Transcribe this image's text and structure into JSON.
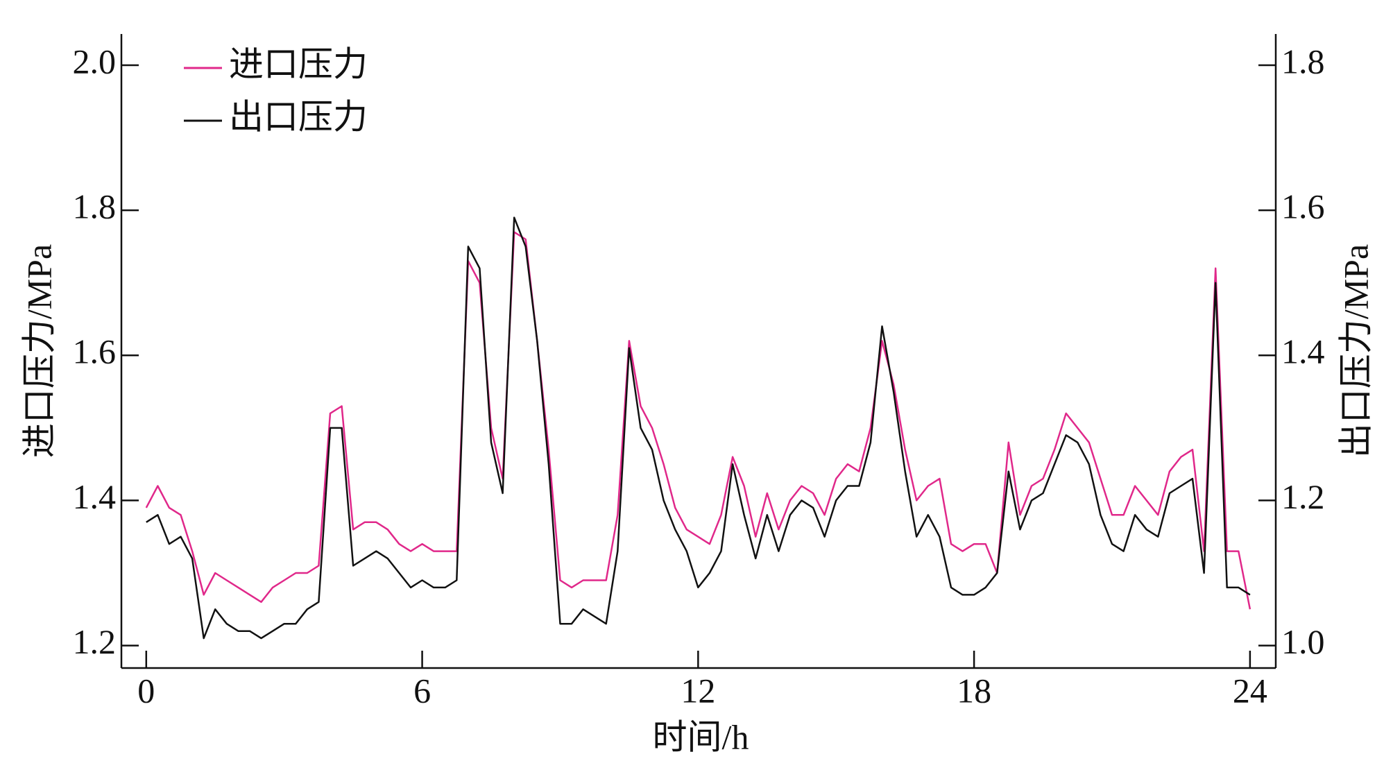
{
  "chart_data": {
    "type": "line",
    "xlabel": "时间/h",
    "ylabel": "进口压力/MPa",
    "y2label": "出口压力/MPa",
    "x": [
      0,
      0.25,
      0.5,
      0.75,
      1,
      1.25,
      1.5,
      1.75,
      2,
      2.25,
      2.5,
      2.75,
      3,
      3.25,
      3.5,
      3.75,
      4,
      4.25,
      4.5,
      4.75,
      5,
      5.25,
      5.5,
      5.75,
      6,
      6.25,
      6.5,
      6.75,
      7,
      7.25,
      7.5,
      7.75,
      8,
      8.25,
      8.5,
      8.75,
      9,
      9.25,
      9.5,
      9.75,
      10,
      10.25,
      10.5,
      10.75,
      11,
      11.25,
      11.5,
      11.75,
      12,
      12.25,
      12.5,
      12.75,
      13,
      13.25,
      13.5,
      13.75,
      14,
      14.25,
      14.5,
      14.75,
      15,
      15.25,
      15.5,
      15.75,
      16,
      16.25,
      16.5,
      16.75,
      17,
      17.25,
      17.5,
      17.75,
      18,
      18.25,
      18.5,
      18.75,
      19,
      19.25,
      19.5,
      19.75,
      20,
      20.25,
      20.5,
      20.75,
      21,
      21.25,
      21.5,
      21.75,
      22,
      22.25,
      22.5,
      22.75,
      23,
      23.25,
      23.5,
      23.75,
      24
    ],
    "series": [
      {
        "name": "进口压力",
        "color": "#e0288a",
        "values": [
          1.39,
          1.42,
          1.39,
          1.38,
          1.33,
          1.27,
          1.3,
          1.29,
          1.28,
          1.27,
          1.26,
          1.28,
          1.29,
          1.3,
          1.3,
          1.31,
          1.52,
          1.53,
          1.36,
          1.37,
          1.37,
          1.36,
          1.34,
          1.33,
          1.34,
          1.33,
          1.33,
          1.33,
          1.73,
          1.7,
          1.5,
          1.43,
          1.77,
          1.76,
          1.62,
          1.47,
          1.29,
          1.28,
          1.29,
          1.29,
          1.29,
          1.38,
          1.62,
          1.53,
          1.5,
          1.45,
          1.39,
          1.36,
          1.35,
          1.34,
          1.38,
          1.46,
          1.42,
          1.35,
          1.41,
          1.36,
          1.4,
          1.42,
          1.41,
          1.38,
          1.43,
          1.45,
          1.44,
          1.5,
          1.62,
          1.56,
          1.47,
          1.4,
          1.42,
          1.43,
          1.34,
          1.33,
          1.34,
          1.34,
          1.3,
          1.48,
          1.38,
          1.42,
          1.43,
          1.47,
          1.52,
          1.5,
          1.48,
          1.43,
          1.38,
          1.38,
          1.42,
          1.4,
          1.38,
          1.44,
          1.46,
          1.47,
          1.33,
          1.72,
          1.33,
          1.33,
          1.25
        ]
      },
      {
        "name": "出口压力",
        "color": "#111111",
        "axis": "y2",
        "values": [
          1.17,
          1.18,
          1.14,
          1.15,
          1.12,
          1.01,
          1.05,
          1.03,
          1.02,
          1.02,
          1.01,
          1.02,
          1.03,
          1.03,
          1.05,
          1.06,
          1.3,
          1.3,
          1.11,
          1.12,
          1.13,
          1.12,
          1.1,
          1.08,
          1.09,
          1.08,
          1.08,
          1.09,
          1.55,
          1.52,
          1.28,
          1.21,
          1.59,
          1.55,
          1.42,
          1.25,
          1.03,
          1.03,
          1.05,
          1.04,
          1.03,
          1.13,
          1.41,
          1.3,
          1.27,
          1.2,
          1.16,
          1.13,
          1.08,
          1.1,
          1.13,
          1.25,
          1.18,
          1.12,
          1.18,
          1.13,
          1.18,
          1.2,
          1.19,
          1.15,
          1.2,
          1.22,
          1.22,
          1.28,
          1.44,
          1.35,
          1.24,
          1.15,
          1.18,
          1.15,
          1.08,
          1.07,
          1.07,
          1.08,
          1.1,
          1.24,
          1.16,
          1.2,
          1.21,
          1.25,
          1.29,
          1.28,
          1.25,
          1.18,
          1.14,
          1.13,
          1.18,
          1.16,
          1.15,
          1.21,
          1.22,
          1.23,
          1.1,
          1.5,
          1.08,
          1.08,
          1.07
        ]
      }
    ],
    "xlim": [
      -0.54,
      24.56
    ],
    "xticks": [
      0,
      6,
      12,
      18,
      24
    ],
    "ylim": [
      1.169,
      2.043
    ],
    "yticks": [
      {
        "value": 1.2,
        "label": "1.2"
      },
      {
        "value": 1.4,
        "label": "1.4"
      },
      {
        "value": 1.6,
        "label": "1.6"
      },
      {
        "value": 1.8,
        "label": "1.8"
      },
      {
        "value": 2.0,
        "label": "2.0"
      }
    ],
    "y2lim": [
      0.969,
      1.843
    ],
    "y2ticks": [
      {
        "value": 1.0,
        "label": "1.0"
      },
      {
        "value": 1.2,
        "label": "1.2"
      },
      {
        "value": 1.4,
        "label": "1.4"
      },
      {
        "value": 1.6,
        "label": "1.6"
      },
      {
        "value": 1.8,
        "label": "1.8"
      }
    ],
    "legend": "upper left"
  }
}
